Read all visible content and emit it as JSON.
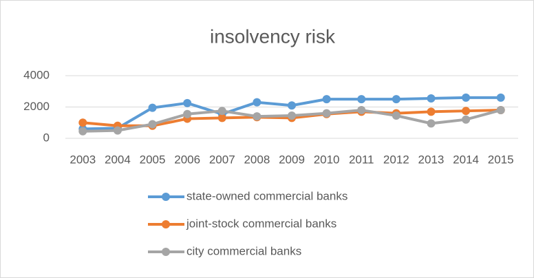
{
  "chart_data": {
    "type": "line",
    "title": "insolvency risk",
    "categories": [
      "2003",
      "2004",
      "2005",
      "2006",
      "2007",
      "2008",
      "2009",
      "2010",
      "2011",
      "2012",
      "2013",
      "2014",
      "2015"
    ],
    "series": [
      {
        "name": "state-owned commercial banks",
        "color": "#5b9bd5",
        "values": [
          600,
          650,
          1950,
          2250,
          1550,
          2300,
          2100,
          2500,
          2500,
          2500,
          2550,
          2600,
          2600
        ]
      },
      {
        "name": "joint-stock commercial banks",
        "color": "#ed7d31",
        "values": [
          1000,
          800,
          800,
          1250,
          1300,
          1350,
          1300,
          1550,
          1700,
          1600,
          1700,
          1750,
          1800
        ]
      },
      {
        "name": "city commercial banks",
        "color": "#a5a5a5",
        "values": [
          450,
          500,
          900,
          1550,
          1750,
          1400,
          1450,
          1600,
          1800,
          1450,
          950,
          1200,
          1800
        ]
      }
    ],
    "ylim": [
      0,
      4000
    ],
    "yticks": [
      0,
      2000,
      4000
    ],
    "grid": true,
    "legend": "bottom"
  }
}
